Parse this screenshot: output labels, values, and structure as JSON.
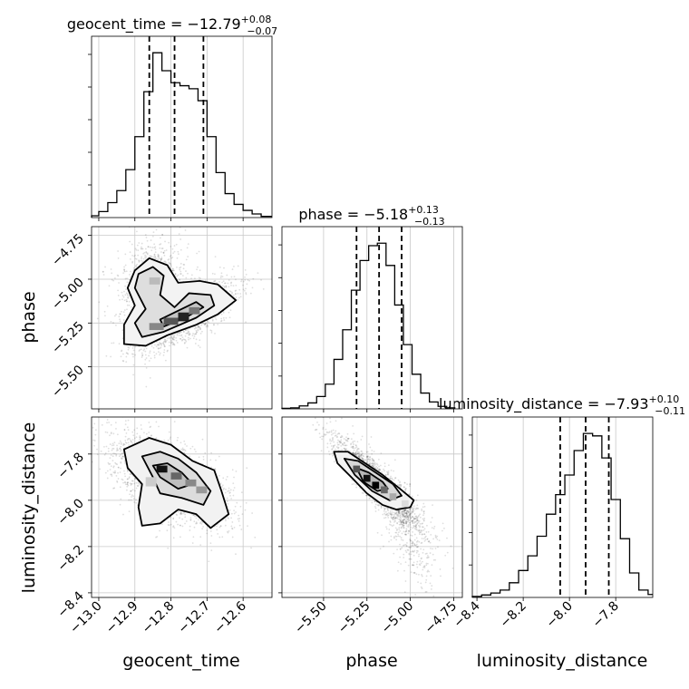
{
  "chart_data": {
    "type": "corner",
    "parameters": [
      "geocent_time",
      "phase",
      "luminosity_distance"
    ],
    "titles": [
      {
        "param": "geocent_time",
        "text": "geocent_time = −12.79",
        "sup": "+0.08",
        "sub": "−0.07"
      },
      {
        "param": "phase",
        "text": "phase = −5.18",
        "sup": "+0.13",
        "sub": "−0.13"
      },
      {
        "param": "luminosity_distance",
        "text": "luminosity_distance = −7.93",
        "sup": "+0.10",
        "sub": "−0.11"
      }
    ],
    "axis_labels": {
      "geocent_time": "geocent_time",
      "phase": "phase",
      "luminosity_distance": "luminosity_distance"
    },
    "ranges": {
      "geocent_time": [
        -13.02,
        -12.52
      ],
      "phase": [
        -5.74,
        -4.7
      ],
      "luminosity_distance": [
        -8.42,
        -7.64
      ]
    },
    "ticks": {
      "geocent_time": [
        -13.0,
        -12.9,
        -12.8,
        -12.7,
        -12.6
      ],
      "phase": [
        -5.5,
        -5.25,
        -5.0,
        -4.75
      ],
      "luminosity_distance": [
        -8.4,
        -8.2,
        -8.0,
        -7.8
      ]
    },
    "tick_labels": {
      "geocent_time": [
        "−13.0",
        "−12.9",
        "−12.8",
        "−12.7",
        "−12.6"
      ],
      "phase": [
        "−5.50",
        "−5.25",
        "−5.00",
        "−4.75"
      ],
      "luminosity_distance": [
        "−8.4",
        "−8.2",
        "−8.0",
        "−7.8"
      ]
    },
    "quantiles": {
      "geocent_time": [
        -12.86,
        -12.79,
        -12.71
      ],
      "phase": [
        -5.31,
        -5.18,
        -5.05
      ],
      "luminosity_distance": [
        -8.04,
        -7.93,
        -7.83
      ]
    },
    "histograms": {
      "geocent_time": {
        "edges": [
          -13.02,
          -13.0,
          -12.975,
          -12.95,
          -12.925,
          -12.9,
          -12.875,
          -12.85,
          -12.825,
          -12.8,
          -12.775,
          -12.75,
          -12.725,
          -12.7,
          -12.675,
          -12.65,
          -12.625,
          -12.6,
          -12.575,
          -12.55,
          -12.52
        ],
        "counts": [
          0.3,
          1.0,
          2.5,
          4.5,
          8.0,
          13.5,
          21.0,
          27.5,
          24.5,
          22.5,
          22.0,
          21.5,
          19.5,
          13.5,
          7.5,
          4.0,
          2.2,
          1.2,
          0.6,
          0.2
        ]
      },
      "phase": {
        "edges": [
          -5.74,
          -5.69,
          -5.64,
          -5.59,
          -5.54,
          -5.49,
          -5.44,
          -5.39,
          -5.34,
          -5.29,
          -5.24,
          -5.19,
          -5.14,
          -5.09,
          -5.04,
          -4.99,
          -4.94,
          -4.89,
          -4.84,
          -4.79,
          -4.74
        ],
        "counts": [
          0.1,
          0.2,
          0.6,
          1.2,
          2.5,
          5.0,
          10.0,
          16.0,
          24.0,
          30.0,
          33.0,
          33.5,
          29.0,
          21.0,
          13.0,
          7.0,
          3.2,
          1.4,
          0.5,
          0.2
        ]
      },
      "luminosity_distance": {
        "edges": [
          -8.42,
          -8.38,
          -8.34,
          -8.3,
          -8.26,
          -8.22,
          -8.18,
          -8.14,
          -8.1,
          -8.06,
          -8.02,
          -7.98,
          -7.94,
          -7.9,
          -7.86,
          -7.82,
          -7.78,
          -7.74,
          -7.7,
          -7.66,
          -7.64
        ],
        "counts": [
          0.2,
          0.5,
          0.9,
          1.5,
          3.0,
          5.5,
          8.5,
          12.5,
          17.0,
          21.0,
          25.0,
          30.0,
          33.5,
          33.0,
          28.5,
          20.0,
          12.0,
          5.0,
          1.5,
          0.6
        ]
      }
    },
    "contour_levels": [
      0.39,
      0.86,
      0.99
    ],
    "grid": true,
    "legend": "none"
  }
}
